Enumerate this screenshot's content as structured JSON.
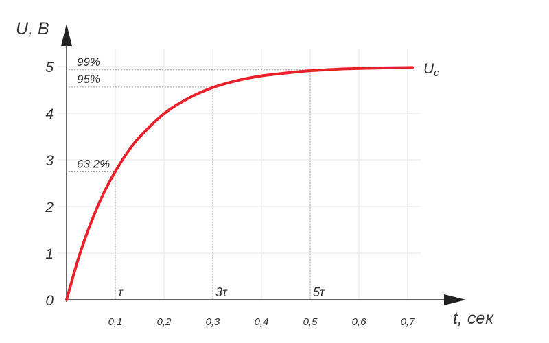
{
  "chart_data": {
    "type": "line",
    "title": "",
    "xlabel": "t, сек",
    "ylabel": "U, В",
    "xlim": [
      0,
      0.75
    ],
    "ylim": [
      0,
      5.4
    ],
    "grid": true,
    "x_ticks": [
      0.1,
      0.2,
      0.3,
      0.4,
      0.5,
      0.6,
      0.7
    ],
    "x_tick_labels": [
      "0,1",
      "0,2",
      "0,3",
      "0,4",
      "0,5",
      "0,6",
      "0,7"
    ],
    "y_ticks": [
      0,
      1,
      2,
      3,
      4,
      5
    ],
    "y_tick_labels": [
      "0",
      "1",
      "2",
      "3",
      "4",
      "5"
    ],
    "series": [
      {
        "name": "Uc",
        "color": "#e8202a",
        "x": [
          0,
          0.025,
          0.05,
          0.075,
          0.1,
          0.125,
          0.15,
          0.2,
          0.25,
          0.3,
          0.35,
          0.4,
          0.45,
          0.5,
          0.55,
          0.6,
          0.65,
          0.71
        ],
        "y": [
          0,
          0.91,
          1.65,
          2.26,
          2.75,
          3.16,
          3.49,
          3.99,
          4.32,
          4.55,
          4.7,
          4.8,
          4.86,
          4.91,
          4.94,
          4.96,
          4.97,
          4.98
        ]
      }
    ],
    "annotations": [
      {
        "label": "63.2%",
        "x": 0.1,
        "y": 2.74,
        "time_label": "τ"
      },
      {
        "label": "95%",
        "x": 0.3,
        "y": 4.56,
        "time_label": "3τ"
      },
      {
        "label": "99%",
        "x": 0.5,
        "y": 4.93,
        "time_label": "5τ"
      }
    ],
    "series_label": "U",
    "series_label_sub": "c"
  }
}
